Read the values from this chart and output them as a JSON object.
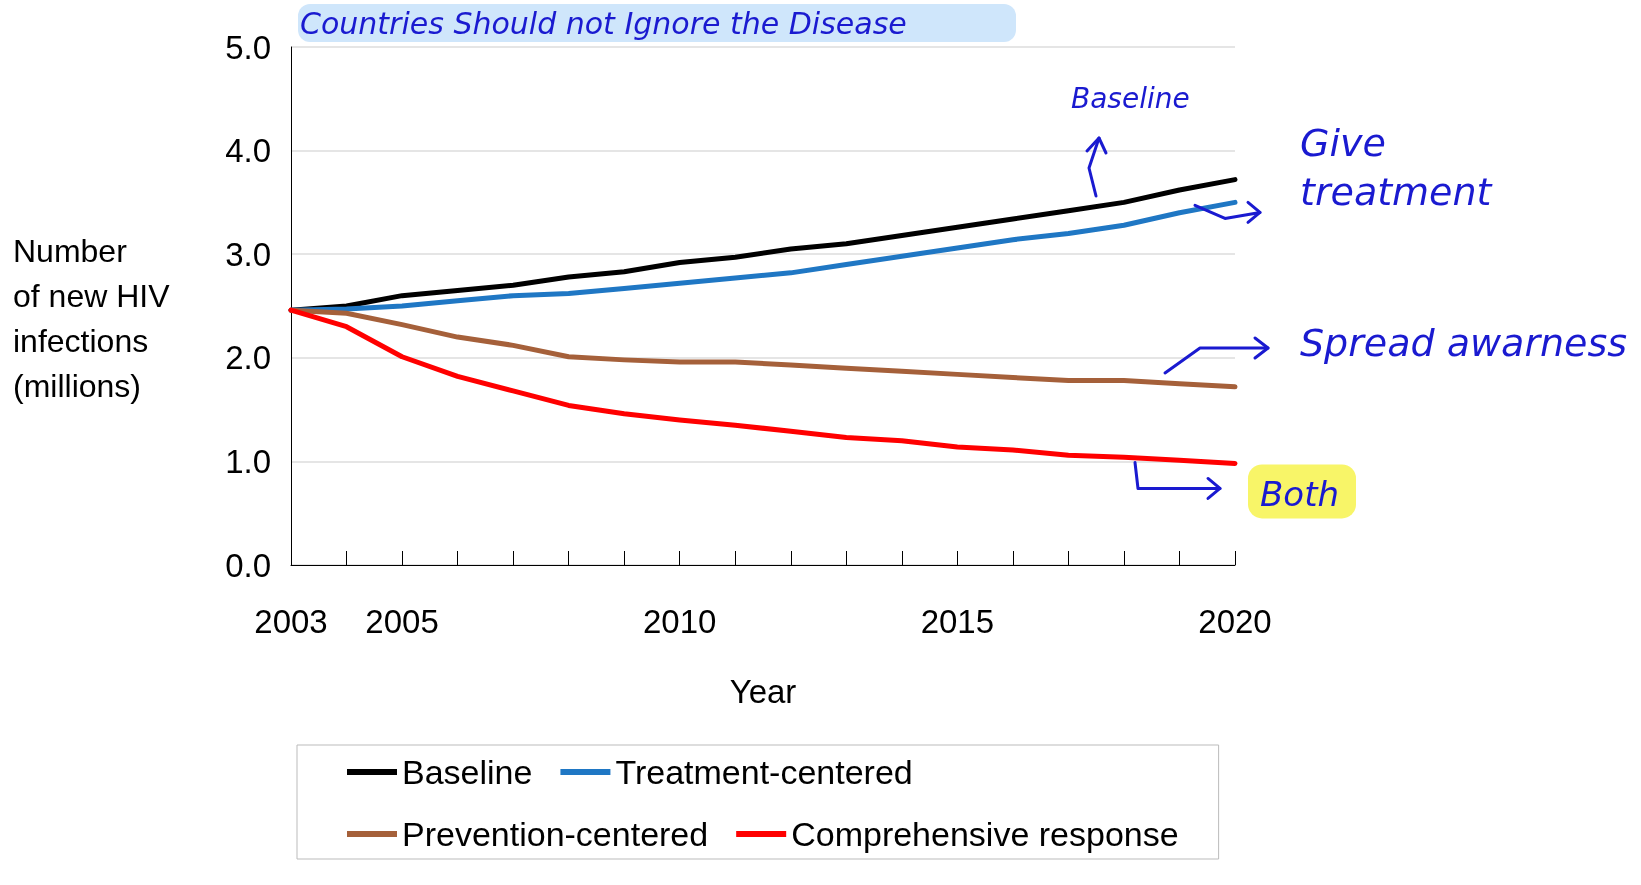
{
  "chart_data": {
    "type": "line",
    "title": "Countries Should not Ignore the Disease",
    "xlabel": "Year",
    "ylabel": "Number\nof new HIV\ninfections\n(millions)",
    "x": [
      2003,
      2004,
      2005,
      2006,
      2007,
      2008,
      2009,
      2010,
      2011,
      2012,
      2013,
      2014,
      2015,
      2016,
      2017,
      2018,
      2019,
      2020
    ],
    "series": [
      {
        "name": "Baseline",
        "color": "#000000",
        "values": [
          2.46,
          2.5,
          2.6,
          2.65,
          2.7,
          2.78,
          2.83,
          2.92,
          2.97,
          3.05,
          3.1,
          3.18,
          3.26,
          3.34,
          3.42,
          3.5,
          3.62,
          3.72
        ]
      },
      {
        "name": "Treatment-centered",
        "color": "#1f77c4",
        "values": [
          2.46,
          2.47,
          2.5,
          2.55,
          2.6,
          2.62,
          2.67,
          2.72,
          2.77,
          2.82,
          2.9,
          2.98,
          3.06,
          3.14,
          3.2,
          3.28,
          3.4,
          3.5
        ]
      },
      {
        "name": "Prevention-centered",
        "color": "#a5603a",
        "values": [
          2.46,
          2.43,
          2.32,
          2.2,
          2.12,
          2.01,
          1.98,
          1.96,
          1.96,
          1.93,
          1.9,
          1.87,
          1.84,
          1.81,
          1.78,
          1.78,
          1.75,
          1.72
        ]
      },
      {
        "name": "Comprehensive response",
        "color": "#ff0000",
        "values": [
          2.46,
          2.3,
          2.01,
          1.82,
          1.68,
          1.54,
          1.46,
          1.4,
          1.35,
          1.29,
          1.23,
          1.2,
          1.14,
          1.11,
          1.06,
          1.04,
          1.01,
          0.98
        ]
      }
    ],
    "xlim": [
      2003,
      2020
    ],
    "xticks": [
      2003,
      {
        "value": 2004,
        "label": null
      },
      2005,
      {
        "value": 2006,
        "label": null
      },
      {
        "value": 2007,
        "label": null
      },
      {
        "value": 2008,
        "label": null
      },
      {
        "value": 2009,
        "label": null
      },
      2010,
      {
        "value": 2011,
        "label": null
      },
      {
        "value": 2012,
        "label": null
      },
      {
        "value": 2013,
        "label": null
      },
      {
        "value": 2014,
        "label": null
      },
      2015,
      {
        "value": 2016,
        "label": null
      },
      {
        "value": 2017,
        "label": null
      },
      {
        "value": 2018,
        "label": null
      },
      {
        "value": 2019,
        "label": null
      },
      2020
    ],
    "ylim": [
      0,
      5
    ],
    "yticks": [
      {
        "value": 0,
        "label": "0.0"
      },
      {
        "value": 1,
        "label": "1.0"
      },
      {
        "value": 2,
        "label": "2.0"
      },
      {
        "value": 3,
        "label": "3.0"
      },
      {
        "value": 4,
        "label": "4.0"
      },
      {
        "value": 5,
        "label": "5.0"
      }
    ],
    "grid": "y",
    "legend": "bottom",
    "marker": "none",
    "line_style": "solid",
    "annotations": [
      "Baseline",
      {
        "text": "Give\ntreatment",
        "x": 2020,
        "y": 3.5
      },
      "Spread awarness",
      {
        "text": "Both",
        "x": 2020,
        "y": 0.98
      }
    ]
  }
}
